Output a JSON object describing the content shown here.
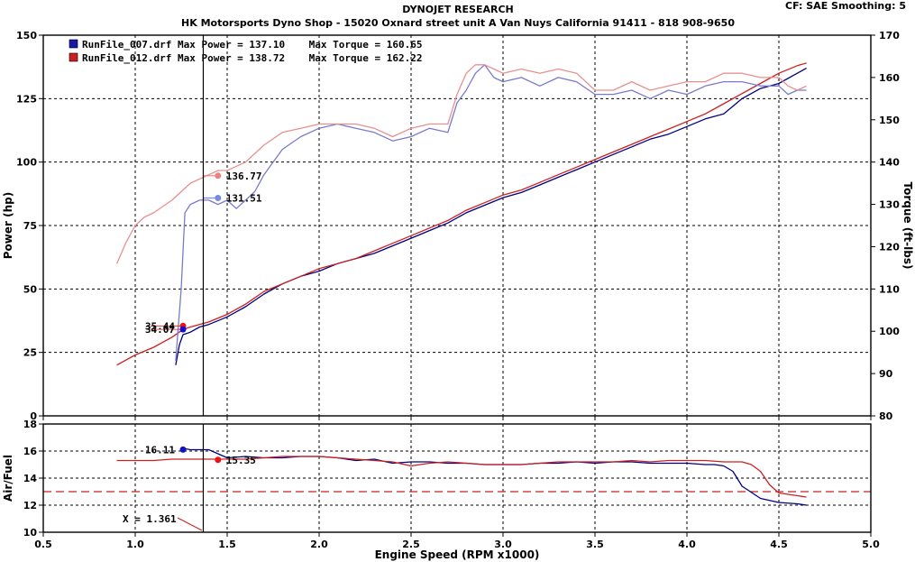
{
  "header": {
    "title": "DYNOJET RESEARCH",
    "subtitle": "HK Motorsports Dyno Shop - 15020 Oxnard street unit A Van Nuys California 91411 - 818 908-9650",
    "cf_label": "CF: SAE  Smoothing: 5"
  },
  "chart_data": [
    {
      "type": "line",
      "panel": "power-torque",
      "xlabel": "Engine Speed (RPM x1000)",
      "ylabel": "Power (hp)",
      "y2label": "Torque (ft-lbs)",
      "xlim": [
        0.5,
        5.0
      ],
      "ylim": [
        0,
        150
      ],
      "y2lim": [
        80,
        170
      ],
      "x_ticks": [
        0.5,
        1.0,
        1.5,
        2.0,
        2.5,
        3.0,
        3.5,
        4.0,
        4.5,
        5.0
      ],
      "y_ticks": [
        0,
        25,
        50,
        75,
        100,
        125,
        150
      ],
      "y2_ticks": [
        80,
        90,
        100,
        110,
        120,
        130,
        140,
        150,
        160,
        170
      ],
      "grid": true,
      "cursor_x": 1.37,
      "legend": [
        {
          "name": "RunFile_007.drf",
          "text": "RunFile_007.drf Max Power = 137.10    Max Torque = 160.65",
          "color": "#1a1aa8"
        },
        {
          "name": "RunFile_012.drf",
          "text": "RunFile_012.drf Max Power = 138.72    Max Torque = 162.22",
          "color": "#cc2020"
        }
      ],
      "series": [
        {
          "name": "RunFile_007.drf",
          "measure": "power",
          "axis": "left",
          "color": "#000080",
          "x": [
            1.22,
            1.24,
            1.26,
            1.3,
            1.35,
            1.4,
            1.5,
            1.6,
            1.7,
            1.8,
            1.9,
            2.0,
            2.1,
            2.2,
            2.3,
            2.4,
            2.5,
            2.6,
            2.7,
            2.8,
            2.9,
            3.0,
            3.1,
            3.2,
            3.3,
            3.4,
            3.5,
            3.6,
            3.7,
            3.8,
            3.9,
            4.0,
            4.1,
            4.2,
            4.3,
            4.4,
            4.5,
            4.6,
            4.65
          ],
          "y": [
            20,
            28,
            32,
            33,
            35,
            36,
            39,
            43,
            48,
            52,
            55,
            57,
            60,
            62,
            64,
            67,
            70,
            73,
            76,
            80,
            83,
            86,
            88,
            91,
            94,
            97,
            100,
            103,
            106,
            109,
            111,
            114,
            117,
            119,
            125,
            129,
            131,
            135,
            137
          ]
        },
        {
          "name": "RunFile_012.drf",
          "measure": "power",
          "axis": "left",
          "color": "#cc2020",
          "x": [
            0.9,
            1.0,
            1.1,
            1.2,
            1.26,
            1.3,
            1.4,
            1.5,
            1.6,
            1.7,
            1.8,
            1.9,
            2.0,
            2.1,
            2.2,
            2.3,
            2.4,
            2.5,
            2.6,
            2.7,
            2.8,
            2.9,
            3.0,
            3.1,
            3.2,
            3.3,
            3.4,
            3.5,
            3.6,
            3.7,
            3.8,
            3.9,
            4.0,
            4.1,
            4.2,
            4.3,
            4.4,
            4.5,
            4.6,
            4.65
          ],
          "y": [
            20,
            24,
            27,
            31,
            34,
            35,
            37,
            40,
            44,
            49,
            52,
            55,
            58,
            60,
            62,
            65,
            68,
            71,
            74,
            77,
            81,
            84,
            87,
            89,
            92,
            95,
            98,
            101,
            104,
            107,
            110,
            113,
            116,
            119,
            123,
            127,
            131,
            135,
            138,
            139
          ]
        },
        {
          "name": "RunFile_007.drf",
          "measure": "torque",
          "axis": "right",
          "color": "#7a7acc",
          "x": [
            1.22,
            1.25,
            1.27,
            1.3,
            1.35,
            1.4,
            1.45,
            1.5,
            1.55,
            1.6,
            1.65,
            1.7,
            1.8,
            1.9,
            2.0,
            2.1,
            2.2,
            2.3,
            2.4,
            2.5,
            2.6,
            2.7,
            2.75,
            2.8,
            2.85,
            2.9,
            2.95,
            3.0,
            3.1,
            3.2,
            3.3,
            3.4,
            3.5,
            3.6,
            3.7,
            3.8,
            3.9,
            4.0,
            4.1,
            4.2,
            4.3,
            4.4,
            4.5,
            4.55,
            4.6,
            4.65
          ],
          "y": [
            93,
            110,
            128,
            130,
            131,
            131,
            130,
            131,
            129,
            131,
            133,
            137,
            143,
            146,
            148,
            149,
            148,
            147,
            145,
            146,
            148,
            147,
            154,
            157,
            161,
            163,
            160,
            159,
            160,
            158,
            160,
            159,
            156,
            156,
            157,
            155,
            157,
            156,
            158,
            159,
            159,
            158,
            158,
            156,
            157,
            157
          ]
        },
        {
          "name": "RunFile_012.drf",
          "measure": "torque",
          "axis": "right",
          "color": "#e89090",
          "x": [
            0.9,
            0.95,
            1.0,
            1.05,
            1.1,
            1.2,
            1.3,
            1.4,
            1.45,
            1.5,
            1.6,
            1.7,
            1.8,
            1.9,
            2.0,
            2.1,
            2.2,
            2.3,
            2.4,
            2.5,
            2.6,
            2.7,
            2.75,
            2.8,
            2.85,
            2.9,
            2.95,
            3.0,
            3.1,
            3.2,
            3.3,
            3.4,
            3.5,
            3.6,
            3.7,
            3.8,
            3.9,
            4.0,
            4.1,
            4.2,
            4.3,
            4.4,
            4.5,
            4.55,
            4.6,
            4.65
          ],
          "y": [
            116,
            121,
            125,
            127,
            128,
            131,
            135,
            137,
            138,
            138,
            140,
            144,
            147,
            148,
            149,
            149,
            149,
            148,
            146,
            148,
            149,
            149,
            156,
            161,
            163,
            163,
            162,
            161,
            162,
            161,
            162,
            161,
            157,
            157,
            159,
            157,
            158,
            159,
            159,
            161,
            161,
            160,
            160,
            158,
            157,
            158
          ]
        }
      ],
      "markers": [
        {
          "series": "RunFile_012.drf",
          "measure": "torque",
          "x": 1.45,
          "label": "136.77",
          "axis": "right",
          "y": 136.77,
          "color": "#f08080"
        },
        {
          "series": "RunFile_007.drf",
          "measure": "torque",
          "x": 1.45,
          "label": "131.51",
          "axis": "right",
          "y": 131.51,
          "color": "#7a8ae0"
        },
        {
          "series": "RunFile_012.drf",
          "measure": "power",
          "x": 1.26,
          "label": "35.44",
          "axis": "left",
          "y": 35.44,
          "color": "#ee1111"
        },
        {
          "series": "RunFile_007.drf",
          "measure": "power",
          "x": 1.26,
          "label": "34.07",
          "axis": "left",
          "y": 34.07,
          "color": "#1111cc"
        }
      ]
    },
    {
      "type": "line",
      "panel": "air-fuel",
      "xlabel": "Engine Speed (RPM x1000)",
      "ylabel": "Air/Fuel",
      "xlim": [
        0.5,
        5.0
      ],
      "ylim": [
        10,
        18
      ],
      "x_ticks": [
        0.5,
        1.0,
        1.5,
        2.0,
        2.5,
        3.0,
        3.5,
        4.0,
        4.5,
        5.0
      ],
      "y_ticks": [
        10,
        12,
        14,
        16,
        18
      ],
      "grid": true,
      "reference_line": {
        "y": 13.0,
        "color": "#cc2020",
        "style": "dashed"
      },
      "cursor_x": 1.37,
      "cursor_readout": "X = 1.361",
      "series": [
        {
          "name": "RunFile_007.drf",
          "color": "#000080",
          "x": [
            1.26,
            1.3,
            1.4,
            1.5,
            1.6,
            1.7,
            1.8,
            1.9,
            2.0,
            2.1,
            2.2,
            2.3,
            2.4,
            2.5,
            2.6,
            2.7,
            2.8,
            2.9,
            3.0,
            3.1,
            3.2,
            3.3,
            3.4,
            3.5,
            3.6,
            3.7,
            3.8,
            3.9,
            4.0,
            4.1,
            4.15,
            4.2,
            4.25,
            4.3,
            4.4,
            4.5,
            4.6,
            4.65
          ],
          "y": [
            16.2,
            16.1,
            16.1,
            15.5,
            15.6,
            15.5,
            15.5,
            15.6,
            15.6,
            15.5,
            15.3,
            15.4,
            15.1,
            15.2,
            15.2,
            15.1,
            15.1,
            15.0,
            15.0,
            15.0,
            15.1,
            15.1,
            15.2,
            15.1,
            15.2,
            15.2,
            15.1,
            15.1,
            15.1,
            15.0,
            15.0,
            14.9,
            14.5,
            13.4,
            12.5,
            12.2,
            12.1,
            12.0
          ]
        },
        {
          "name": "RunFile_012.drf",
          "color": "#cc2020",
          "x": [
            0.9,
            1.0,
            1.1,
            1.2,
            1.3,
            1.45,
            1.6,
            1.8,
            1.9,
            2.0,
            2.1,
            2.2,
            2.3,
            2.4,
            2.5,
            2.6,
            2.7,
            2.8,
            2.9,
            3.0,
            3.1,
            3.2,
            3.3,
            3.4,
            3.5,
            3.6,
            3.7,
            3.8,
            3.9,
            4.0,
            4.1,
            4.2,
            4.3,
            4.35,
            4.4,
            4.45,
            4.5,
            4.6,
            4.65
          ],
          "y": [
            15.3,
            15.3,
            15.3,
            15.4,
            15.4,
            15.4,
            15.4,
            15.6,
            15.6,
            15.6,
            15.5,
            15.4,
            15.3,
            15.2,
            14.9,
            15.1,
            15.2,
            15.1,
            15.0,
            15.0,
            15.0,
            15.1,
            15.2,
            15.2,
            15.2,
            15.2,
            15.3,
            15.2,
            15.3,
            15.3,
            15.3,
            15.2,
            15.2,
            15.0,
            14.5,
            13.5,
            12.9,
            12.7,
            12.6
          ]
        }
      ],
      "markers": [
        {
          "series": "RunFile_007.drf",
          "x": 1.26,
          "y": 16.11,
          "label": "16.11",
          "color": "#1111cc"
        },
        {
          "series": "RunFile_012.drf",
          "x": 1.45,
          "y": 15.35,
          "label": "15.35",
          "color": "#ee1111"
        }
      ]
    }
  ]
}
